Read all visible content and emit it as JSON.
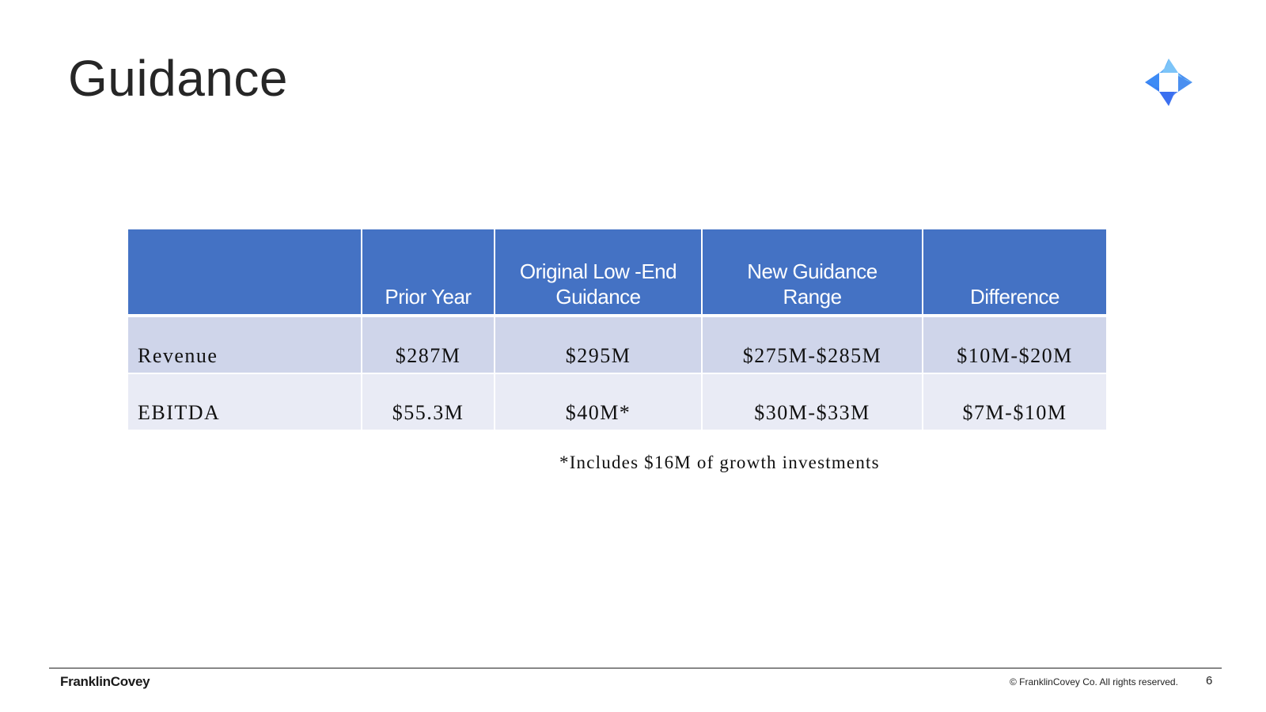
{
  "slide": {
    "title": "Guidance",
    "page_number": "6"
  },
  "table": {
    "headers": [
      "",
      "Prior Year",
      "Original Low  -End Guidance",
      "New Guidance Range",
      "Difference"
    ],
    "rows": [
      {
        "label": "Revenue",
        "prior_year": "$287M",
        "original": "$295M",
        "new_range": "$275M-$285M",
        "difference": "$10M-$20M"
      },
      {
        "label": "EBITDA",
        "prior_year": "$55.3M",
        "original": "$40M*",
        "new_range": "$30M-$33M",
        "difference": "$7M-$10M"
      }
    ]
  },
  "footnote": "*Includes $16M of growth investments",
  "footer": {
    "brand": "FranklinCovey",
    "copyright": "© FranklinCovey Co. All rights reserved."
  },
  "colors": {
    "header_blue": "#4472c4",
    "row1": "#cfd5ea",
    "row2": "#e9ebf5",
    "logo_blue": "#3b82f6",
    "logo_light": "#7cc4f8"
  },
  "icons": {
    "logo": "compass-star-icon"
  }
}
